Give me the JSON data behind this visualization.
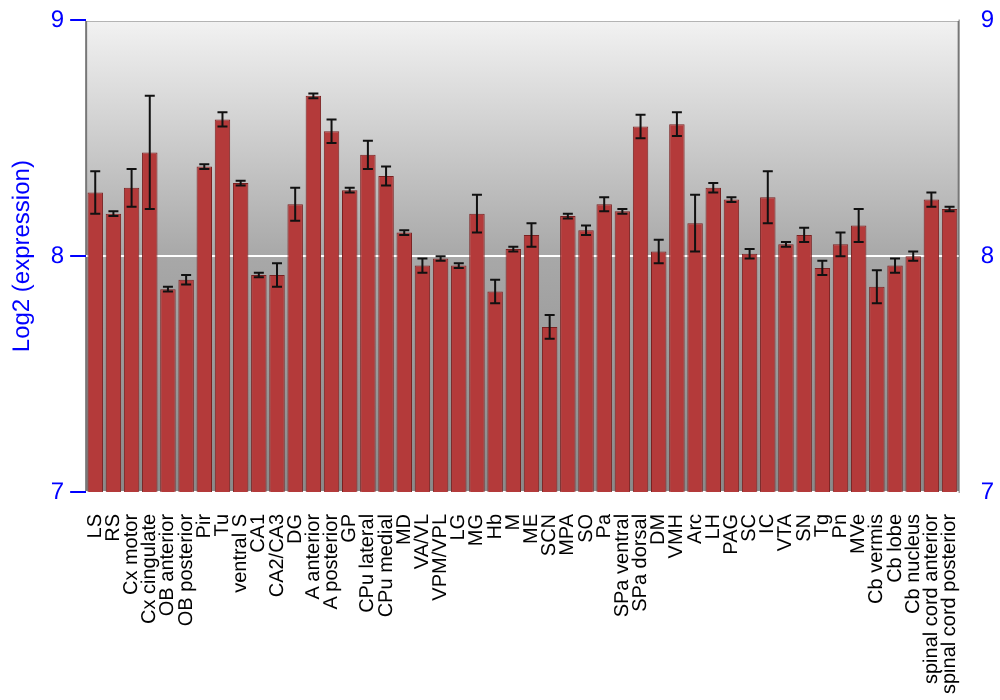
{
  "chart_data": {
    "type": "bar",
    "ylabel": "Log2 (expression)",
    "categories": [
      "LS",
      "RS",
      "Cx motor",
      "Cx cingulate",
      "OB anterior",
      "OB posterior",
      "Pir",
      "Tu",
      "ventral S",
      "CA1",
      "CA2/CA3",
      "DG",
      "A anterior",
      "A posterior",
      "GP",
      "CPu lateral",
      "CPu medial",
      "MD",
      "VA/VL",
      "VPM/VPL",
      "LG",
      "MG",
      "Hb",
      "M",
      "ME",
      "SCN",
      "MPA",
      "SO",
      "Pa",
      "SPa ventral",
      "SPa dorsal",
      "DM",
      "VMH",
      "Arc",
      "LH",
      "PAG",
      "SC",
      "IC",
      "VTA",
      "SN",
      "Tg",
      "Pn",
      "MVe",
      "Cb vermis",
      "Cb lobe",
      "Cb nucleus",
      "spinal cord anterior",
      "spinal cord posterior"
    ],
    "values": [
      8.27,
      8.18,
      8.29,
      8.44,
      7.86,
      7.9,
      8.38,
      8.58,
      8.31,
      7.92,
      7.92,
      8.22,
      8.68,
      8.53,
      8.28,
      8.43,
      8.34,
      8.1,
      7.96,
      7.99,
      7.96,
      8.18,
      7.85,
      8.03,
      8.09,
      7.7,
      8.17,
      8.11,
      8.22,
      8.19,
      8.55,
      8.02,
      8.56,
      8.14,
      8.29,
      8.24,
      8.01,
      8.25,
      8.05,
      8.09,
      7.95,
      8.05,
      8.13,
      7.87,
      7.96,
      8.0,
      8.24,
      8.2
    ],
    "errors": [
      0.09,
      0.01,
      0.08,
      0.24,
      0.01,
      0.02,
      0.01,
      0.03,
      0.01,
      0.01,
      0.05,
      0.07,
      0.01,
      0.05,
      0.01,
      0.06,
      0.04,
      0.01,
      0.03,
      0.01,
      0.01,
      0.08,
      0.05,
      0.01,
      0.05,
      0.05,
      0.01,
      0.02,
      0.03,
      0.01,
      0.05,
      0.05,
      0.05,
      0.12,
      0.02,
      0.01,
      0.02,
      0.11,
      0.01,
      0.03,
      0.03,
      0.05,
      0.07,
      0.07,
      0.03,
      0.02,
      0.03,
      0.01
    ],
    "color": "#b43a3a",
    "ylim": [
      7,
      9
    ],
    "yticks": [
      7,
      8,
      9
    ],
    "y2lim": [
      7,
      9
    ],
    "y2ticks": [
      7,
      8,
      9
    ],
    "grid": "y",
    "legend": false
  }
}
